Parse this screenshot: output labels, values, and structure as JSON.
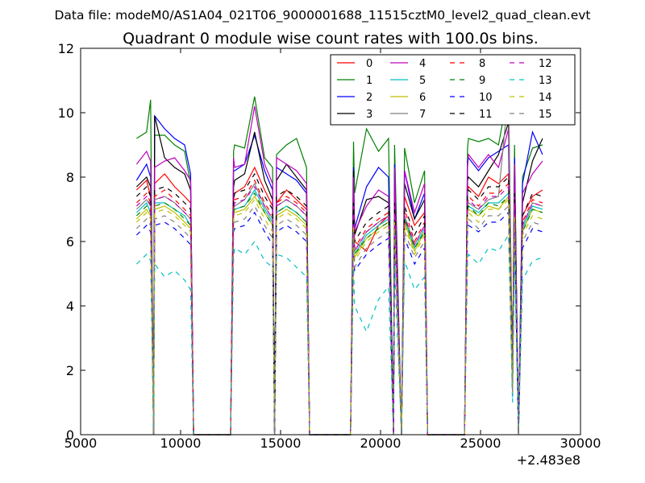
{
  "figure": {
    "suptitle": "Data file: modeM0/AS1A04_021T06_9000001688_11515cztM0_level2_quad_clean.evt",
    "title": "Quadrant 0 module wise count rates with 100.0s bins.",
    "offset_text": "+2.483e8"
  },
  "chart_data": {
    "type": "line",
    "title": "Quadrant 0 module wise count rates with 100.0s bins.",
    "xlabel": "",
    "ylabel": "",
    "xlim": [
      5000,
      30000
    ],
    "ylim": [
      0,
      12
    ],
    "x_offset": 248300000,
    "x_ticks": [
      5000,
      10000,
      15000,
      20000,
      25000,
      30000
    ],
    "x_tick_labels": [
      "5000",
      "10000",
      "15000",
      "20000",
      "25000",
      "30000"
    ],
    "y_ticks": [
      0,
      2,
      4,
      6,
      8,
      10,
      12
    ],
    "y_tick_labels": [
      "0",
      "2",
      "4",
      "6",
      "8",
      "10",
      "12"
    ],
    "grid": false,
    "legend": {
      "position": "top-right",
      "columns": 4
    },
    "x": [
      7800,
      8300,
      8500,
      8650,
      8700,
      9200,
      9700,
      10200,
      10500,
      10650,
      10700,
      11500,
      12500,
      12650,
      12700,
      13200,
      13700,
      14200,
      14600,
      14700,
      14800,
      15300,
      15800,
      16300,
      16450,
      16500,
      17500,
      18500,
      18650,
      18700,
      19300,
      19900,
      20400,
      20650,
      20700,
      21050,
      21200,
      21700,
      22200,
      22350,
      22400,
      23300,
      24200,
      24350,
      24400,
      24900,
      25400,
      25900,
      26400,
      26600,
      26700,
      26900,
      27100,
      27600,
      28100
    ],
    "series": [
      {
        "name": "0",
        "color": "#ff0000",
        "dash": "solid",
        "values": [
          7.6,
          7.9,
          7.4,
          0,
          7.8,
          8.1,
          7.7,
          7.4,
          7.2,
          0,
          0,
          0,
          0,
          7.3,
          7.5,
          7.7,
          8.3,
          7.6,
          7.1,
          0,
          7.2,
          7.6,
          7.3,
          7.0,
          0,
          0,
          0,
          0,
          6.9,
          6.0,
          5.7,
          6.5,
          6.8,
          0,
          7.3,
          0,
          7.4,
          6.5,
          6.9,
          0,
          0,
          0,
          0,
          7.6,
          7.7,
          7.4,
          8.0,
          7.8,
          8.1,
          1.5,
          7.5,
          0,
          6.8,
          7.4,
          7.6
        ]
      },
      {
        "name": "1",
        "color": "#008000",
        "dash": "solid",
        "values": [
          9.2,
          9.4,
          10.4,
          0,
          9.3,
          9.3,
          9.0,
          8.8,
          7.8,
          0,
          0,
          0,
          0,
          8.8,
          9.0,
          8.9,
          10.5,
          8.6,
          8.3,
          0,
          8.7,
          9.0,
          9.2,
          8.3,
          0,
          0,
          0,
          0,
          9.1,
          7.5,
          9.5,
          8.8,
          9.2,
          0,
          9.0,
          0,
          8.9,
          7.2,
          8.2,
          0,
          0,
          0,
          0,
          8.9,
          9.2,
          9.1,
          9.2,
          9.0,
          10.7,
          2.0,
          9.0,
          0,
          8.0,
          8.9,
          9.0
        ]
      },
      {
        "name": "2",
        "color": "#0000ff",
        "dash": "solid",
        "values": [
          7.9,
          8.4,
          8.0,
          0,
          9.9,
          9.5,
          9.2,
          9.0,
          8.1,
          0,
          0,
          0,
          0,
          8.2,
          8.2,
          8.4,
          9.3,
          8.2,
          7.6,
          0,
          8.3,
          8.1,
          7.9,
          7.5,
          0,
          0,
          0,
          0,
          8.3,
          6.4,
          7.7,
          8.3,
          8.0,
          0,
          8.4,
          0,
          8.2,
          6.7,
          7.5,
          0,
          0,
          0,
          0,
          8.5,
          8.6,
          8.2,
          8.6,
          8.8,
          9.0,
          1.8,
          8.6,
          0,
          7.8,
          9.4,
          8.7
        ]
      },
      {
        "name": "3",
        "color": "#000000",
        "dash": "solid",
        "values": [
          7.7,
          8.0,
          7.7,
          0,
          9.9,
          8.6,
          8.3,
          8.1,
          7.6,
          0,
          0,
          0,
          0,
          7.7,
          7.9,
          8.1,
          9.4,
          7.9,
          7.3,
          0,
          7.9,
          8.4,
          8.0,
          7.6,
          0,
          0,
          0,
          0,
          8.2,
          6.2,
          7.3,
          7.4,
          7.2,
          0,
          7.8,
          0,
          7.8,
          6.7,
          7.3,
          0,
          0,
          0,
          0,
          7.9,
          8.0,
          7.7,
          8.2,
          8.7,
          9.7,
          1.8,
          8.4,
          0,
          7.2,
          8.5,
          9.2
        ]
      },
      {
        "name": "4",
        "color": "#bf00bf",
        "dash": "solid",
        "values": [
          8.4,
          8.8,
          8.5,
          0,
          8.3,
          8.5,
          8.6,
          8.2,
          7.9,
          0,
          0,
          0,
          0,
          8.6,
          8.3,
          8.4,
          10.2,
          8.4,
          7.8,
          0,
          8.6,
          8.4,
          8.2,
          7.8,
          0,
          0,
          0,
          0,
          8.0,
          6.3,
          7.1,
          7.6,
          7.4,
          0,
          8.3,
          0,
          8.2,
          6.9,
          7.8,
          0,
          0,
          0,
          0,
          8.3,
          8.7,
          8.3,
          8.7,
          8.3,
          9.5,
          1.8,
          8.4,
          0,
          7.5,
          8.1,
          8.5
        ]
      },
      {
        "name": "5",
        "color": "#00bfbf",
        "dash": "solid",
        "values": [
          6.9,
          7.2,
          6.9,
          0,
          7.2,
          7.2,
          7.0,
          6.8,
          6.5,
          0,
          0,
          0,
          0,
          6.9,
          7.0,
          7.1,
          7.6,
          7.0,
          6.6,
          0,
          6.9,
          7.1,
          6.9,
          6.6,
          0,
          0,
          0,
          0,
          6.8,
          5.6,
          6.2,
          6.5,
          6.7,
          0,
          6.8,
          0,
          6.7,
          5.8,
          6.4,
          0,
          0,
          0,
          0,
          7.0,
          7.1,
          6.9,
          7.2,
          7.2,
          7.5,
          1.4,
          7.0,
          0,
          6.4,
          7.1,
          7.0
        ]
      },
      {
        "name": "6",
        "color": "#bfbf00",
        "dash": "solid",
        "values": [
          6.7,
          7.0,
          6.8,
          0,
          7.0,
          7.1,
          6.9,
          6.6,
          6.4,
          0,
          0,
          0,
          0,
          6.8,
          6.9,
          7.0,
          7.4,
          6.9,
          6.5,
          0,
          6.8,
          7.0,
          6.8,
          6.5,
          0,
          0,
          0,
          0,
          6.7,
          5.5,
          6.1,
          6.4,
          6.6,
          0,
          6.7,
          0,
          6.6,
          5.7,
          6.3,
          0,
          0,
          0,
          0,
          6.9,
          7.0,
          6.8,
          7.1,
          7.0,
          7.4,
          1.3,
          6.9,
          0,
          6.3,
          7.0,
          6.9
        ]
      },
      {
        "name": "7",
        "color": "#808080",
        "dash": "solid",
        "values": [
          7.0,
          7.3,
          7.1,
          0,
          7.3,
          7.4,
          7.2,
          6.9,
          6.7,
          0,
          0,
          0,
          0,
          7.0,
          7.1,
          7.3,
          7.8,
          7.1,
          6.7,
          0,
          7.1,
          7.3,
          7.1,
          6.8,
          0,
          0,
          0,
          0,
          6.9,
          5.7,
          6.3,
          6.6,
          6.8,
          0,
          6.9,
          0,
          6.8,
          5.9,
          6.5,
          0,
          0,
          0,
          0,
          7.1,
          7.2,
          7.0,
          7.3,
          7.4,
          10.7,
          1.4,
          7.2,
          0,
          6.5,
          7.2,
          7.1
        ]
      },
      {
        "name": "8",
        "color": "#ff0000",
        "dash": "dashed",
        "values": [
          7.2,
          7.5,
          7.2,
          0,
          7.4,
          7.6,
          7.3,
          7.0,
          6.8,
          0,
          0,
          0,
          0,
          7.2,
          7.3,
          7.4,
          7.9,
          7.2,
          6.8,
          0,
          7.2,
          7.4,
          7.2,
          6.9,
          0,
          0,
          0,
          0,
          7.0,
          5.8,
          6.4,
          6.7,
          6.9,
          0,
          7.0,
          0,
          7.0,
          6.0,
          6.6,
          0,
          0,
          0,
          0,
          7.3,
          7.4,
          7.1,
          7.5,
          7.5,
          7.8,
          1.4,
          7.3,
          0,
          6.6,
          7.3,
          7.2
        ]
      },
      {
        "name": "9",
        "color": "#008000",
        "dash": "dashed",
        "values": [
          6.8,
          7.1,
          6.9,
          0,
          7.1,
          7.2,
          7.0,
          6.7,
          6.5,
          0,
          0,
          0,
          0,
          6.9,
          7.0,
          7.1,
          7.5,
          6.9,
          6.5,
          0,
          6.9,
          7.1,
          6.9,
          6.6,
          0,
          0,
          0,
          0,
          6.7,
          5.6,
          6.1,
          6.4,
          6.6,
          0,
          6.7,
          0,
          6.7,
          5.8,
          6.3,
          0,
          0,
          0,
          0,
          7.0,
          7.1,
          6.8,
          7.2,
          7.1,
          7.4,
          1.3,
          7.0,
          0,
          6.3,
          7.0,
          6.9
        ]
      },
      {
        "name": "10",
        "color": "#0000ff",
        "dash": "dashed",
        "values": [
          6.2,
          6.5,
          6.3,
          0,
          6.5,
          6.6,
          6.4,
          6.1,
          5.9,
          0,
          0,
          0,
          0,
          6.3,
          6.4,
          6.5,
          6.9,
          6.3,
          5.9,
          0,
          6.3,
          6.5,
          6.3,
          6.0,
          0,
          0,
          0,
          0,
          6.1,
          5.1,
          5.6,
          5.9,
          6.1,
          0,
          6.2,
          0,
          6.1,
          5.3,
          5.8,
          0,
          0,
          0,
          0,
          6.4,
          6.5,
          6.3,
          6.6,
          6.6,
          6.9,
          1.2,
          6.4,
          0,
          5.8,
          6.4,
          6.3
        ]
      },
      {
        "name": "11",
        "color": "#000000",
        "dash": "dashed",
        "values": [
          7.4,
          7.7,
          7.4,
          0,
          7.6,
          7.7,
          7.5,
          7.2,
          7.0,
          0,
          0,
          0,
          0,
          7.3,
          7.5,
          7.6,
          8.1,
          7.4,
          7.0,
          0,
          7.4,
          7.6,
          7.4,
          7.1,
          0,
          0,
          0,
          0,
          7.2,
          6.0,
          6.6,
          6.9,
          7.1,
          0,
          7.2,
          0,
          7.1,
          6.2,
          6.8,
          0,
          0,
          0,
          0,
          7.5,
          7.6,
          7.3,
          7.7,
          7.7,
          8.0,
          1.5,
          7.5,
          0,
          6.8,
          7.5,
          7.4
        ]
      },
      {
        "name": "12",
        "color": "#bf00bf",
        "dash": "dashed",
        "values": [
          7.1,
          7.4,
          7.1,
          0,
          7.3,
          7.4,
          7.2,
          6.9,
          6.7,
          0,
          0,
          0,
          0,
          7.0,
          7.2,
          7.3,
          7.7,
          7.1,
          6.7,
          0,
          7.1,
          7.3,
          7.1,
          6.8,
          0,
          0,
          0,
          0,
          6.9,
          5.7,
          6.3,
          6.6,
          6.8,
          0,
          6.9,
          0,
          6.8,
          5.9,
          6.5,
          0,
          0,
          0,
          0,
          7.2,
          7.3,
          7.0,
          7.4,
          7.4,
          7.7,
          1.4,
          7.2,
          0,
          6.5,
          7.2,
          7.1
        ]
      },
      {
        "name": "13",
        "color": "#00bfbf",
        "dash": "dashed",
        "values": [
          5.3,
          5.6,
          5.4,
          0,
          5.3,
          4.9,
          5.1,
          4.8,
          4.5,
          0,
          0,
          0,
          0,
          5.5,
          5.8,
          5.6,
          6.0,
          5.4,
          5.2,
          0,
          5.6,
          5.5,
          5.2,
          4.9,
          0,
          0,
          0,
          0,
          5.2,
          4.0,
          3.2,
          4.2,
          4.6,
          0,
          5.3,
          0,
          5.4,
          4.5,
          4.9,
          0,
          0,
          0,
          0,
          5.4,
          5.6,
          5.3,
          5.8,
          5.7,
          6.2,
          1.0,
          5.5,
          0,
          4.8,
          5.4,
          5.5
        ]
      },
      {
        "name": "14",
        "color": "#bfbf00",
        "dash": "dashed",
        "values": [
          6.6,
          6.9,
          6.7,
          0,
          6.9,
          7.0,
          6.8,
          6.5,
          6.3,
          0,
          0,
          0,
          0,
          6.7,
          6.8,
          6.9,
          7.3,
          6.7,
          6.3,
          0,
          6.7,
          6.9,
          6.7,
          6.4,
          0,
          0,
          0,
          0,
          6.5,
          5.4,
          6.0,
          6.3,
          6.5,
          0,
          6.6,
          0,
          6.5,
          5.6,
          6.2,
          0,
          0,
          0,
          0,
          6.8,
          6.9,
          6.6,
          7.0,
          7.0,
          7.3,
          1.3,
          6.8,
          0,
          6.2,
          6.8,
          6.7
        ]
      },
      {
        "name": "15",
        "color": "#808080",
        "dash": "dashed",
        "values": [
          6.4,
          6.7,
          6.5,
          0,
          6.7,
          6.8,
          6.6,
          6.3,
          6.1,
          0,
          0,
          0,
          0,
          6.5,
          6.6,
          6.7,
          7.1,
          6.5,
          6.1,
          0,
          6.5,
          6.7,
          6.5,
          6.2,
          0,
          0,
          0,
          0,
          6.3,
          5.2,
          5.8,
          6.1,
          6.3,
          0,
          6.4,
          0,
          6.3,
          5.5,
          6.0,
          0,
          0,
          0,
          0,
          6.6,
          6.7,
          6.4,
          6.8,
          6.8,
          7.1,
          1.3,
          6.6,
          0,
          6.0,
          6.6,
          6.5
        ]
      }
    ]
  }
}
